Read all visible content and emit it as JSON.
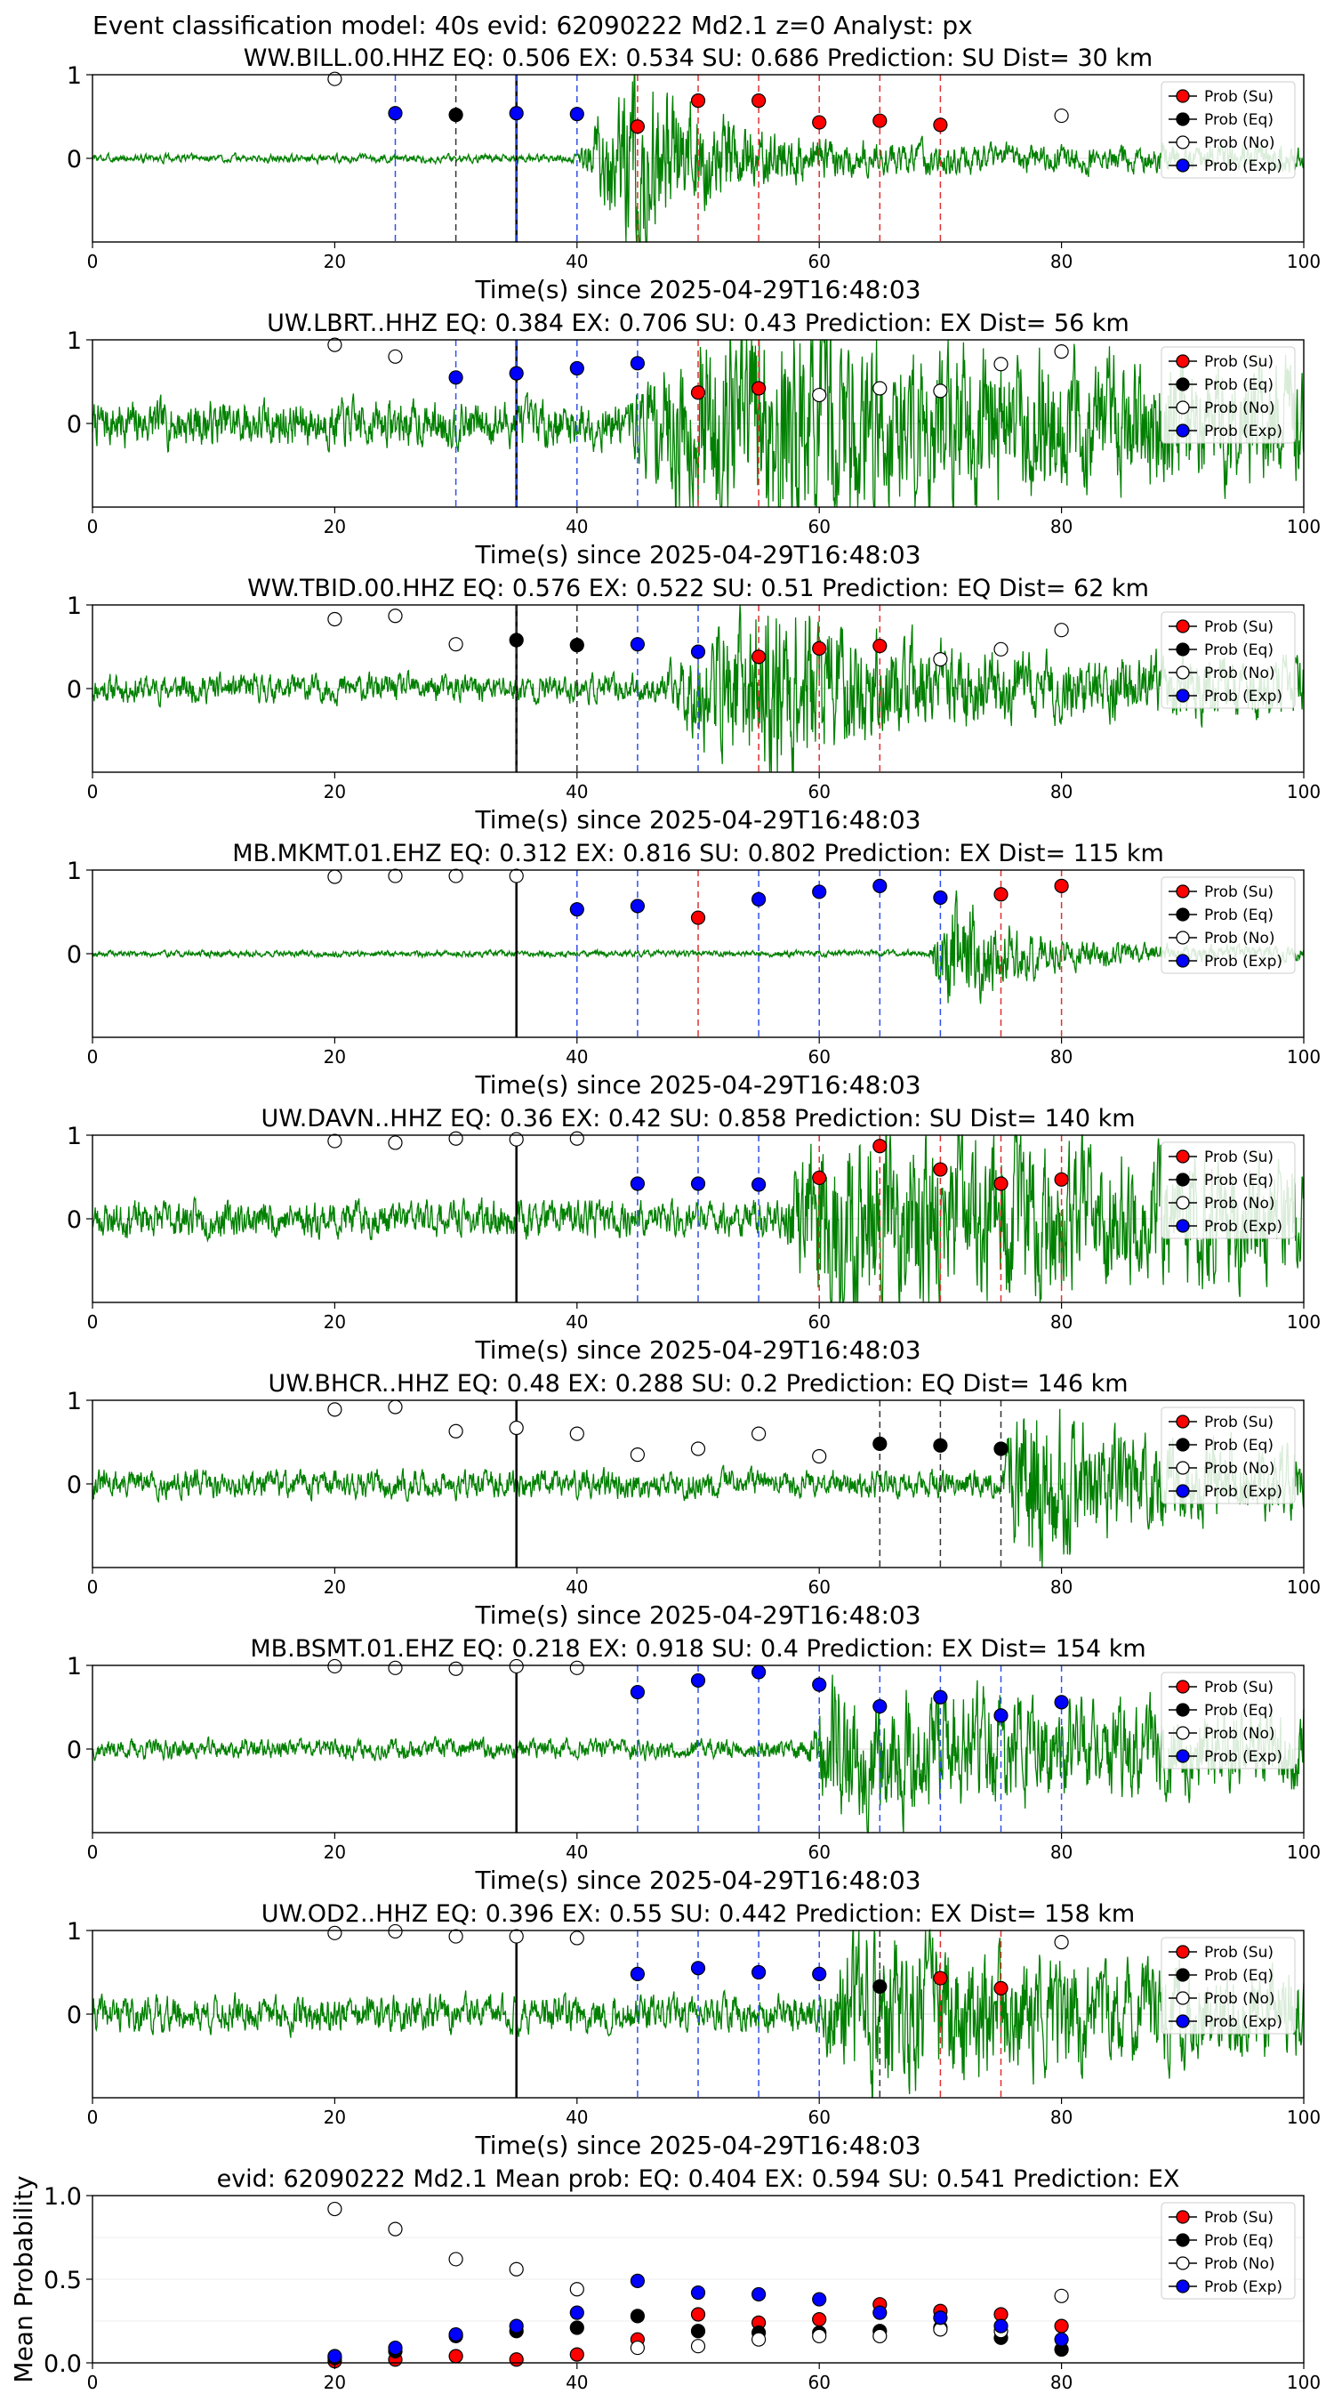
{
  "header": "Event classification model: 40s evid: 62090222 Md2.1 z=0 Analyst: px",
  "colors": {
    "su": "#ff0000",
    "eq": "#000000",
    "no": "#ffffff",
    "exp": "#0000ff",
    "waveform": "#008000",
    "grid": "#dddddd"
  },
  "legend_labels": [
    "Prob (Su)",
    "Prob (Eq)",
    "Prob (No)",
    "Prob (Exp)"
  ],
  "chart_data": [
    {
      "type": "scatter",
      "title": "WW.BILL.00.HHZ   EQ: 0.506  EX: 0.534  SU: 0.686   Prediction: SU    Dist= 30 km",
      "xlabel": "Time(s) since 2025-04-29T16:48:03",
      "xlim": [
        0,
        100
      ],
      "ylim": [
        -1,
        1
      ],
      "xticks": [
        "0",
        "20",
        "40",
        "60",
        "80",
        "100"
      ],
      "yticks": [
        "0",
        "1"
      ],
      "event_line": 35,
      "signal": {
        "noise": 0.05,
        "onset": 40,
        "peak": 45,
        "amp": 1.1,
        "decay": 6,
        "tail": 0.12,
        "seed": 3
      },
      "points": [
        {
          "t": 20,
          "p": 0.95,
          "c": "no"
        },
        {
          "t": 25,
          "p": 0.54,
          "c": "exp"
        },
        {
          "t": 30,
          "p": 0.52,
          "c": "eq"
        },
        {
          "t": 35,
          "p": 0.54,
          "c": "exp"
        },
        {
          "t": 40,
          "p": 0.53,
          "c": "exp"
        },
        {
          "t": 45,
          "p": 0.38,
          "c": "su"
        },
        {
          "t": 50,
          "p": 0.69,
          "c": "su"
        },
        {
          "t": 55,
          "p": 0.69,
          "c": "su"
        },
        {
          "t": 60,
          "p": 0.43,
          "c": "su"
        },
        {
          "t": 65,
          "p": 0.45,
          "c": "su"
        },
        {
          "t": 70,
          "p": 0.4,
          "c": "su"
        },
        {
          "t": 80,
          "p": 0.51,
          "c": "no"
        }
      ]
    },
    {
      "type": "scatter",
      "title": "UW.LBRT..HHZ   EQ: 0.384  EX: 0.706  SU: 0.43   Prediction: EX    Dist= 56 km",
      "xlabel": "Time(s) since 2025-04-29T16:48:03",
      "xlim": [
        0,
        100
      ],
      "ylim": [
        -1,
        1
      ],
      "xticks": [
        "0",
        "20",
        "40",
        "60",
        "80",
        "100"
      ],
      "yticks": [
        "0",
        "1"
      ],
      "event_line": 35,
      "signal": {
        "noise": 0.28,
        "onset": 44,
        "peak": 55,
        "amp": 0.9,
        "decay": 20,
        "tail": 0.35,
        "seed": 7
      },
      "points": [
        {
          "t": 20,
          "p": 0.94,
          "c": "no"
        },
        {
          "t": 25,
          "p": 0.8,
          "c": "no"
        },
        {
          "t": 30,
          "p": 0.55,
          "c": "exp"
        },
        {
          "t": 35,
          "p": 0.6,
          "c": "exp"
        },
        {
          "t": 40,
          "p": 0.66,
          "c": "exp"
        },
        {
          "t": 45,
          "p": 0.72,
          "c": "exp"
        },
        {
          "t": 50,
          "p": 0.37,
          "c": "su"
        },
        {
          "t": 55,
          "p": 0.42,
          "c": "su"
        },
        {
          "t": 60,
          "p": 0.34,
          "c": "no"
        },
        {
          "t": 65,
          "p": 0.42,
          "c": "no"
        },
        {
          "t": 70,
          "p": 0.39,
          "c": "no"
        },
        {
          "t": 75,
          "p": 0.71,
          "c": "no"
        },
        {
          "t": 80,
          "p": 0.86,
          "c": "no"
        }
      ]
    },
    {
      "type": "scatter",
      "title": "WW.TBID.00.HHZ   EQ: 0.576  EX: 0.522  SU: 0.51   Prediction: EQ    Dist= 62 km",
      "xlabel": "Time(s) since 2025-04-29T16:48:03",
      "xlim": [
        0,
        100
      ],
      "ylim": [
        -1,
        1
      ],
      "xticks": [
        "0",
        "20",
        "40",
        "60",
        "80",
        "100"
      ],
      "yticks": [
        "0",
        "1"
      ],
      "event_line": 35,
      "signal": {
        "noise": 0.17,
        "onset": 47,
        "peak": 57,
        "amp": 0.9,
        "decay": 7,
        "tail": 0.2,
        "seed": 11
      },
      "points": [
        {
          "t": 20,
          "p": 0.83,
          "c": "no"
        },
        {
          "t": 25,
          "p": 0.87,
          "c": "no"
        },
        {
          "t": 30,
          "p": 0.53,
          "c": "no"
        },
        {
          "t": 35,
          "p": 0.58,
          "c": "eq"
        },
        {
          "t": 40,
          "p": 0.52,
          "c": "eq"
        },
        {
          "t": 45,
          "p": 0.53,
          "c": "exp"
        },
        {
          "t": 50,
          "p": 0.44,
          "c": "exp"
        },
        {
          "t": 55,
          "p": 0.38,
          "c": "su"
        },
        {
          "t": 60,
          "p": 0.48,
          "c": "su"
        },
        {
          "t": 65,
          "p": 0.51,
          "c": "su"
        },
        {
          "t": 70,
          "p": 0.35,
          "c": "no"
        },
        {
          "t": 75,
          "p": 0.47,
          "c": "no"
        },
        {
          "t": 80,
          "p": 0.7,
          "c": "no"
        }
      ]
    },
    {
      "type": "scatter",
      "title": "MB.MKMT.01.EHZ   EQ: 0.312  EX: 0.816  SU: 0.802   Prediction: EX    Dist= 115 km",
      "xlabel": "Time(s) since 2025-04-29T16:48:03",
      "xlim": [
        0,
        100
      ],
      "ylim": [
        -1,
        1
      ],
      "xticks": [
        "0",
        "20",
        "40",
        "60",
        "80",
        "100"
      ],
      "yticks": [
        "0",
        "1"
      ],
      "event_line": 35,
      "signal": {
        "noise": 0.04,
        "onset": 69,
        "peak": 71,
        "amp": 0.75,
        "decay": 5,
        "tail": 0.05,
        "seed": 19
      },
      "points": [
        {
          "t": 20,
          "p": 0.92,
          "c": "no"
        },
        {
          "t": 25,
          "p": 0.93,
          "c": "no"
        },
        {
          "t": 30,
          "p": 0.93,
          "c": "no"
        },
        {
          "t": 35,
          "p": 0.93,
          "c": "no"
        },
        {
          "t": 40,
          "p": 0.53,
          "c": "exp"
        },
        {
          "t": 45,
          "p": 0.57,
          "c": "exp"
        },
        {
          "t": 50,
          "p": 0.43,
          "c": "su"
        },
        {
          "t": 55,
          "p": 0.65,
          "c": "exp"
        },
        {
          "t": 60,
          "p": 0.74,
          "c": "exp"
        },
        {
          "t": 65,
          "p": 0.81,
          "c": "exp"
        },
        {
          "t": 70,
          "p": 0.67,
          "c": "exp"
        },
        {
          "t": 75,
          "p": 0.71,
          "c": "su"
        },
        {
          "t": 80,
          "p": 0.81,
          "c": "su"
        }
      ]
    },
    {
      "type": "scatter",
      "title": "UW.DAVN..HHZ   EQ: 0.36  EX: 0.42  SU: 0.858   Prediction: SU    Dist= 140 km",
      "xlabel": "Time(s) since 2025-04-29T16:48:03",
      "xlim": [
        0,
        100
      ],
      "ylim": [
        -1,
        1
      ],
      "xticks": [
        "0",
        "20",
        "40",
        "60",
        "80",
        "100"
      ],
      "yticks": [
        "0",
        "1"
      ],
      "event_line": 35,
      "signal": {
        "noise": 0.22,
        "onset": 57,
        "peak": 60,
        "amp": 0.8,
        "decay": 30,
        "tail": 0.3,
        "seed": 23
      },
      "points": [
        {
          "t": 20,
          "p": 0.93,
          "c": "no"
        },
        {
          "t": 25,
          "p": 0.91,
          "c": "no"
        },
        {
          "t": 30,
          "p": 0.96,
          "c": "no"
        },
        {
          "t": 35,
          "p": 0.95,
          "c": "no"
        },
        {
          "t": 40,
          "p": 0.96,
          "c": "no"
        },
        {
          "t": 45,
          "p": 0.42,
          "c": "exp"
        },
        {
          "t": 50,
          "p": 0.42,
          "c": "exp"
        },
        {
          "t": 55,
          "p": 0.41,
          "c": "exp"
        },
        {
          "t": 60,
          "p": 0.49,
          "c": "su"
        },
        {
          "t": 65,
          "p": 0.87,
          "c": "su"
        },
        {
          "t": 70,
          "p": 0.59,
          "c": "su"
        },
        {
          "t": 75,
          "p": 0.42,
          "c": "su"
        },
        {
          "t": 80,
          "p": 0.47,
          "c": "su"
        }
      ]
    },
    {
      "type": "scatter",
      "title": "UW.BHCR..HHZ   EQ: 0.48  EX: 0.288  SU: 0.2   Prediction: EQ    Dist= 146 km",
      "xlabel": "Time(s) since 2025-04-29T16:48:03",
      "xlim": [
        0,
        100
      ],
      "ylim": [
        -1,
        1
      ],
      "xticks": [
        "0",
        "20",
        "40",
        "60",
        "80",
        "100"
      ],
      "yticks": [
        "0",
        "1"
      ],
      "event_line": 35,
      "signal": {
        "noise": 0.17,
        "onset": 75,
        "peak": 77,
        "amp": 0.8,
        "decay": 6,
        "tail": 0.25,
        "seed": 31
      },
      "points": [
        {
          "t": 20,
          "p": 0.89,
          "c": "no"
        },
        {
          "t": 25,
          "p": 0.92,
          "c": "no"
        },
        {
          "t": 30,
          "p": 0.63,
          "c": "no"
        },
        {
          "t": 35,
          "p": 0.67,
          "c": "no"
        },
        {
          "t": 40,
          "p": 0.6,
          "c": "no"
        },
        {
          "t": 45,
          "p": 0.35,
          "c": "no"
        },
        {
          "t": 50,
          "p": 0.42,
          "c": "no"
        },
        {
          "t": 55,
          "p": 0.6,
          "c": "no"
        },
        {
          "t": 60,
          "p": 0.33,
          "c": "no"
        },
        {
          "t": 65,
          "p": 0.48,
          "c": "eq"
        },
        {
          "t": 70,
          "p": 0.46,
          "c": "eq"
        },
        {
          "t": 75,
          "p": 0.42,
          "c": "eq"
        }
      ]
    },
    {
      "type": "scatter",
      "title": "MB.BSMT.01.EHZ   EQ: 0.218  EX: 0.918  SU: 0.4   Prediction: EX    Dist= 154 km",
      "xlabel": "Time(s) since 2025-04-29T16:48:03",
      "xlim": [
        0,
        100
      ],
      "ylim": [
        -1,
        1
      ],
      "xticks": [
        "0",
        "20",
        "40",
        "60",
        "80",
        "100"
      ],
      "yticks": [
        "0",
        "1"
      ],
      "event_line": 35,
      "signal": {
        "noise": 0.12,
        "onset": 59,
        "peak": 61,
        "amp": 0.6,
        "decay": 30,
        "tail": 0.2,
        "seed": 37
      },
      "points": [
        {
          "t": 20,
          "p": 0.99,
          "c": "no"
        },
        {
          "t": 25,
          "p": 0.97,
          "c": "no"
        },
        {
          "t": 30,
          "p": 0.96,
          "c": "no"
        },
        {
          "t": 35,
          "p": 0.99,
          "c": "no"
        },
        {
          "t": 40,
          "p": 0.97,
          "c": "no"
        },
        {
          "t": 45,
          "p": 0.68,
          "c": "exp"
        },
        {
          "t": 50,
          "p": 0.82,
          "c": "exp"
        },
        {
          "t": 55,
          "p": 0.92,
          "c": "exp"
        },
        {
          "t": 60,
          "p": 0.77,
          "c": "exp"
        },
        {
          "t": 65,
          "p": 0.51,
          "c": "exp"
        },
        {
          "t": 70,
          "p": 0.62,
          "c": "exp"
        },
        {
          "t": 75,
          "p": 0.4,
          "c": "exp"
        },
        {
          "t": 80,
          "p": 0.56,
          "c": "exp"
        }
      ]
    },
    {
      "type": "scatter",
      "title": "UW.OD2..HHZ   EQ: 0.396  EX: 0.55  SU: 0.442   Prediction: EX    Dist= 158 km",
      "xlabel": "Time(s) since 2025-04-29T16:48:03",
      "xlim": [
        0,
        100
      ],
      "ylim": [
        -1,
        1
      ],
      "xticks": [
        "0",
        "20",
        "40",
        "60",
        "80",
        "100"
      ],
      "yticks": [
        "0",
        "1"
      ],
      "event_line": 35,
      "signal": {
        "noise": 0.22,
        "onset": 60,
        "peak": 62,
        "amp": 0.7,
        "decay": 15,
        "tail": 0.25,
        "seed": 41
      },
      "points": [
        {
          "t": 20,
          "p": 0.97,
          "c": "no"
        },
        {
          "t": 25,
          "p": 0.99,
          "c": "no"
        },
        {
          "t": 30,
          "p": 0.93,
          "c": "no"
        },
        {
          "t": 35,
          "p": 0.93,
          "c": "no"
        },
        {
          "t": 40,
          "p": 0.91,
          "c": "no"
        },
        {
          "t": 45,
          "p": 0.48,
          "c": "exp"
        },
        {
          "t": 50,
          "p": 0.55,
          "c": "exp"
        },
        {
          "t": 55,
          "p": 0.5,
          "c": "exp"
        },
        {
          "t": 60,
          "p": 0.48,
          "c": "exp"
        },
        {
          "t": 65,
          "p": 0.33,
          "c": "eq"
        },
        {
          "t": 70,
          "p": 0.43,
          "c": "su"
        },
        {
          "t": 75,
          "p": 0.31,
          "c": "su"
        },
        {
          "t": 80,
          "p": 0.86,
          "c": "no"
        }
      ]
    },
    {
      "type": "scatter",
      "title": "evid: 62090222  Md2.1   Mean prob:   EQ: 0.404  EX: 0.594  SU: 0.541   Prediction: EX",
      "xlabel": "",
      "ylabel": "Mean Probability",
      "xlim": [
        0,
        100
      ],
      "ylim": [
        0,
        1
      ],
      "xticks": [
        "0",
        "20",
        "40",
        "60",
        "80",
        "100"
      ],
      "yticks": [
        "0.0",
        "0.5",
        "1.0"
      ],
      "series": [
        {
          "name": "Prob (Su)",
          "c": "su",
          "x": [
            20,
            25,
            30,
            35,
            40,
            45,
            50,
            55,
            60,
            65,
            70,
            75,
            80
          ],
          "y": [
            0.01,
            0.02,
            0.04,
            0.02,
            0.05,
            0.14,
            0.29,
            0.24,
            0.26,
            0.35,
            0.31,
            0.29,
            0.22
          ]
        },
        {
          "name": "Prob (Eq)",
          "c": "eq",
          "x": [
            20,
            25,
            30,
            35,
            40,
            45,
            50,
            55,
            60,
            65,
            70,
            75,
            80
          ],
          "y": [
            0.03,
            0.07,
            0.16,
            0.19,
            0.21,
            0.28,
            0.19,
            0.18,
            0.18,
            0.19,
            0.21,
            0.15,
            0.08
          ]
        },
        {
          "name": "Prob (No)",
          "c": "no",
          "x": [
            20,
            25,
            30,
            35,
            40,
            45,
            50,
            55,
            60,
            65,
            70,
            75,
            80
          ],
          "y": [
            0.92,
            0.8,
            0.62,
            0.56,
            0.44,
            0.09,
            0.1,
            0.14,
            0.16,
            0.16,
            0.2,
            0.19,
            0.4
          ]
        },
        {
          "name": "Prob (Exp)",
          "c": "exp",
          "x": [
            20,
            25,
            30,
            35,
            40,
            45,
            50,
            55,
            60,
            65,
            70,
            75,
            80
          ],
          "y": [
            0.04,
            0.09,
            0.17,
            0.22,
            0.3,
            0.49,
            0.42,
            0.41,
            0.38,
            0.3,
            0.27,
            0.22,
            0.14
          ]
        }
      ]
    }
  ]
}
